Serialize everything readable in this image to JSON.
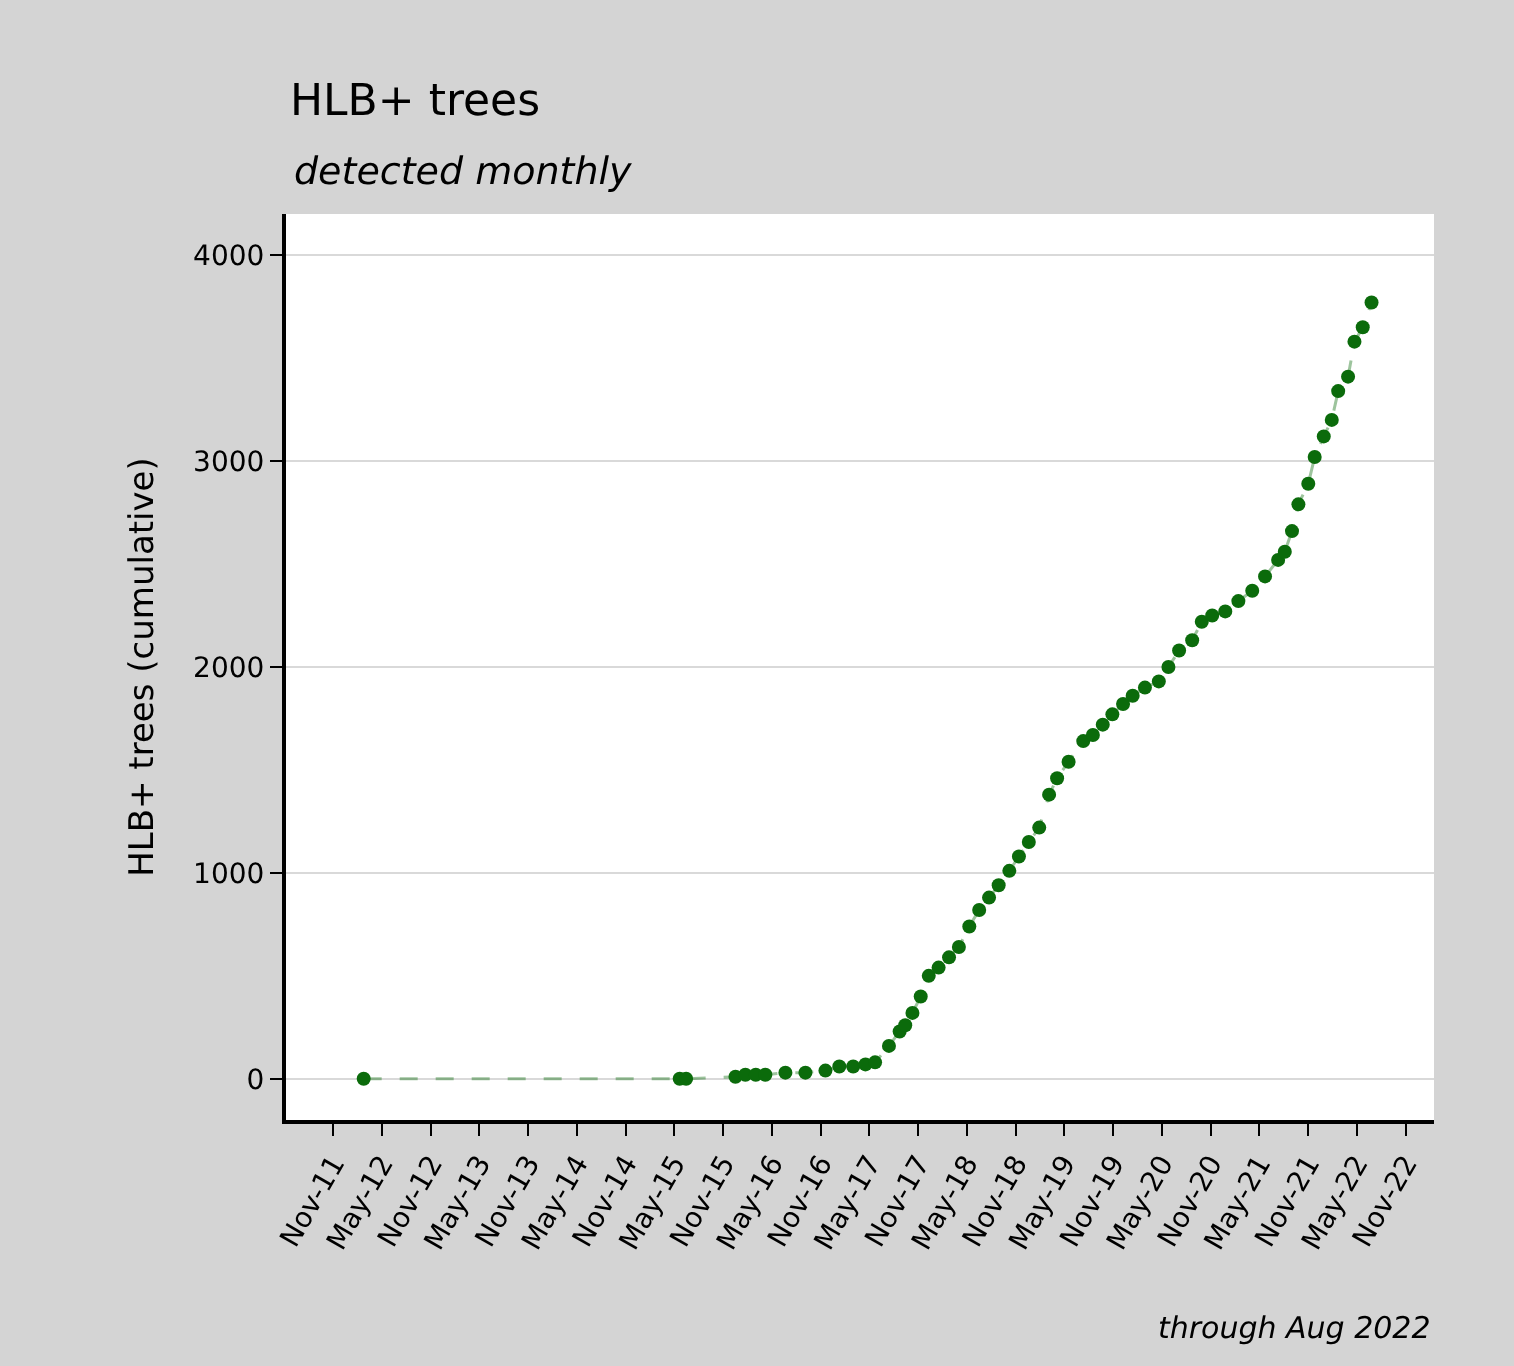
{
  "chart_data": {
    "type": "line",
    "title": "HLB+ trees",
    "subtitle": "detected monthly",
    "ylabel": "HLB+ trees (cumulative)",
    "annotations": [
      "through Aug 2022"
    ],
    "x": [
      "2012-02-23",
      "2015-05-22",
      "2015-06-15",
      "2015-12-17",
      "2016-01-23",
      "2016-03-02",
      "2016-04-07",
      "2016-06-21",
      "2016-09-04",
      "2016-11-18",
      "2017-01-09",
      "2017-03-02",
      "2017-04-17",
      "2017-05-23",
      "2017-07-14",
      "2017-08-23",
      "2017-09-13",
      "2017-10-10",
      "2017-11-10",
      "2017-12-10",
      "2018-01-16",
      "2018-02-24",
      "2018-04-02",
      "2018-05-11",
      "2018-06-17",
      "2018-07-24",
      "2018-08-29",
      "2018-10-08",
      "2018-11-13",
      "2018-12-20",
      "2019-01-28",
      "2019-03-06",
      "2019-04-05",
      "2019-05-18",
      "2019-07-12",
      "2019-08-17",
      "2019-09-23",
      "2019-10-29",
      "2019-12-08",
      "2020-01-13",
      "2020-02-28",
      "2020-04-20",
      "2020-05-26",
      "2020-07-05",
      "2020-08-23",
      "2020-09-28",
      "2020-11-06",
      "2020-12-25",
      "2021-02-12",
      "2021-04-05",
      "2021-05-23",
      "2021-07-11",
      "2021-08-05",
      "2021-09-01",
      "2021-09-25",
      "2021-11-01",
      "2021-11-25",
      "2021-12-29",
      "2022-01-28",
      "2022-02-21",
      "2022-03-30",
      "2022-04-23",
      "2022-05-24",
      "2022-06-26"
    ],
    "series": [
      {
        "color": "#0b6b0b",
        "values": [
          0,
          0,
          0,
          10,
          20,
          20,
          20,
          30,
          30,
          40,
          60,
          60,
          70,
          80,
          160,
          230,
          260,
          320,
          400,
          500,
          540,
          590,
          640,
          740,
          820,
          880,
          940,
          1010,
          1080,
          1150,
          1220,
          1380,
          1460,
          1540,
          1640,
          1670,
          1720,
          1770,
          1820,
          1860,
          1900,
          1930,
          2000,
          2080,
          2130,
          2220,
          2250,
          2270,
          2320,
          2370,
          2440,
          2520,
          2560,
          2660,
          2790,
          2890,
          3020,
          3120,
          3200,
          3340,
          3410,
          3580,
          3650,
          3770
        ]
      }
    ],
    "xlim": [
      "2011-05-08",
      "2023-02-15"
    ],
    "xticks": [
      {
        "value": "2011-11-01",
        "label": "Nov-11"
      },
      {
        "value": "2012-05-01",
        "label": "May-12"
      },
      {
        "value": "2012-11-01",
        "label": "Nov-12"
      },
      {
        "value": "2013-05-01",
        "label": "May-13"
      },
      {
        "value": "2013-11-01",
        "label": "Nov-13"
      },
      {
        "value": "2014-05-01",
        "label": "May-14"
      },
      {
        "value": "2014-11-01",
        "label": "Nov-14"
      },
      {
        "value": "2015-05-01",
        "label": "May-15"
      },
      {
        "value": "2015-11-01",
        "label": "Nov-15"
      },
      {
        "value": "2016-05-01",
        "label": "May-16"
      },
      {
        "value": "2016-11-01",
        "label": "Nov-16"
      },
      {
        "value": "2017-05-01",
        "label": "May-17"
      },
      {
        "value": "2017-11-01",
        "label": "Nov-17"
      },
      {
        "value": "2018-05-01",
        "label": "May-18"
      },
      {
        "value": "2018-11-01",
        "label": "Nov-18"
      },
      {
        "value": "2019-05-01",
        "label": "May-19"
      },
      {
        "value": "2019-11-01",
        "label": "Nov-19"
      },
      {
        "value": "2020-05-01",
        "label": "May-20"
      },
      {
        "value": "2020-11-01",
        "label": "Nov-20"
      },
      {
        "value": "2021-05-01",
        "label": "May-21"
      },
      {
        "value": "2021-11-01",
        "label": "Nov-21"
      },
      {
        "value": "2022-05-01",
        "label": "May-22"
      },
      {
        "value": "2022-11-01",
        "label": "Nov-22"
      }
    ],
    "ylim": [
      -200,
      4200
    ],
    "yticks": [
      0,
      1000,
      2000,
      3000,
      4000
    ],
    "grid": "y",
    "marker": "circle",
    "line_style": "dashed"
  }
}
